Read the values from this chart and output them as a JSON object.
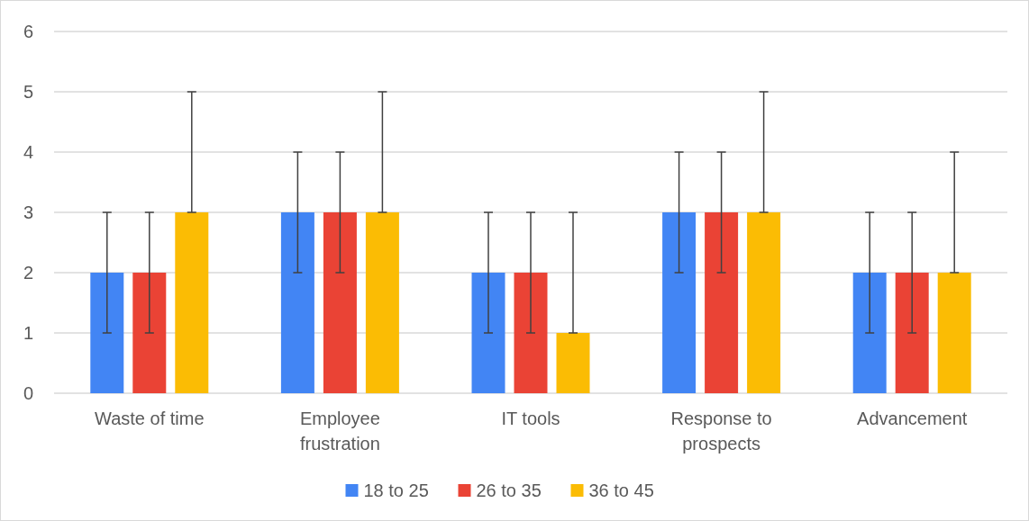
{
  "chart_data": {
    "type": "bar",
    "categories": [
      "Waste of time",
      "Employee frustration",
      "IT tools",
      "Response to prospects",
      "Advancement"
    ],
    "series": [
      {
        "name": "18 to 25",
        "color": "#4285f4",
        "values": [
          2,
          3,
          2,
          3,
          2
        ],
        "errors": [
          [
            1,
            3
          ],
          [
            2,
            4
          ],
          [
            1,
            3
          ],
          [
            2,
            4
          ],
          [
            1,
            3
          ]
        ]
      },
      {
        "name": "26 to 35",
        "color": "#ea4335",
        "values": [
          2,
          3,
          2,
          3,
          2
        ],
        "errors": [
          [
            1,
            3
          ],
          [
            2,
            4
          ],
          [
            1,
            3
          ],
          [
            2,
            4
          ],
          [
            1,
            3
          ]
        ]
      },
      {
        "name": "36 to 45",
        "color": "#fbbc04",
        "values": [
          3,
          3,
          1,
          3,
          2
        ],
        "errors": [
          [
            3,
            5
          ],
          [
            3,
            5
          ],
          [
            1,
            3
          ],
          [
            3,
            5
          ],
          [
            2,
            4
          ]
        ]
      }
    ],
    "ylim": [
      0,
      6
    ],
    "yticks": [
      0,
      1,
      2,
      3,
      4,
      5,
      6
    ],
    "grid": "y",
    "legend": "bottom"
  }
}
